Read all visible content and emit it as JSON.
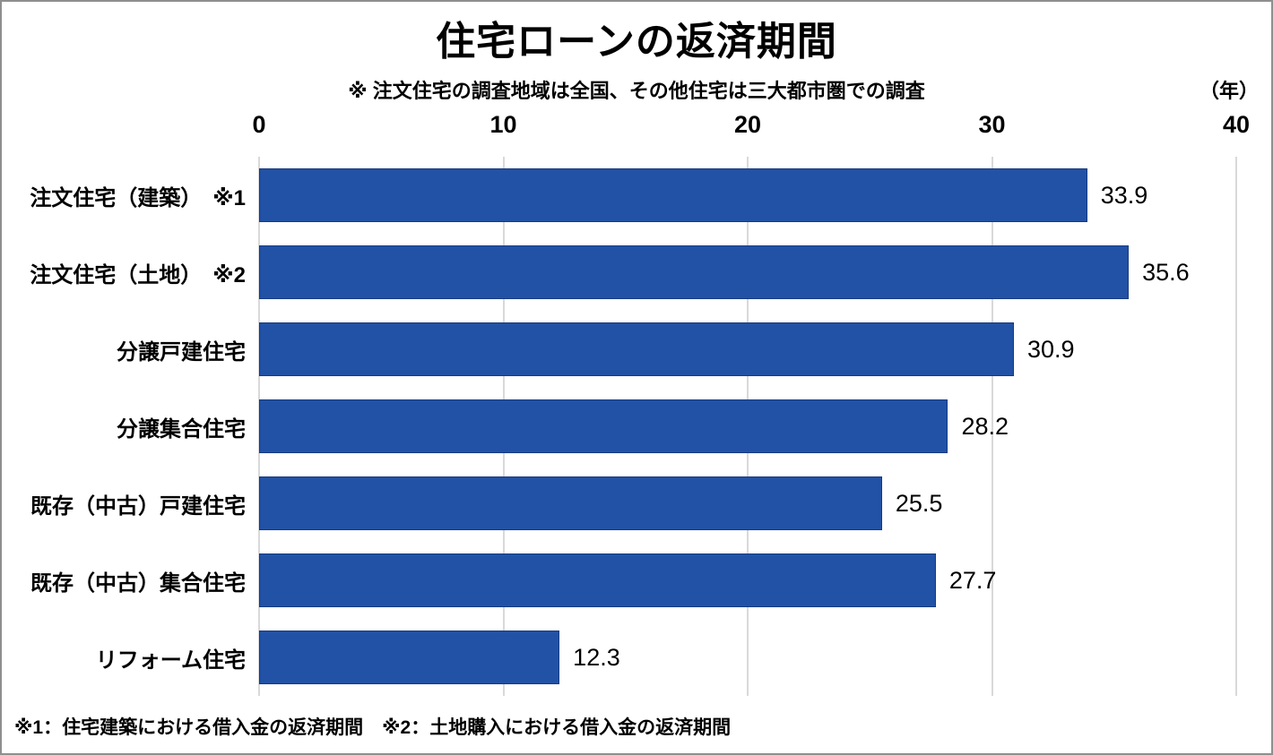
{
  "title": "住宅ローンの返済期間",
  "subtitle": "※ 注文住宅の調査地域は全国、その他住宅は三大都市圏での調査",
  "unit_label": "（年）",
  "footer": "※1：住宅建築における借入金の返済期間　※2：土地購入における借入金の返済期間",
  "colors": {
    "bar_fill": "#2152a6",
    "bar_border": "#173a80",
    "gridline": "#d9d9d9",
    "page_border": "#8f8f8f",
    "text": "#000000"
  },
  "chart_data": {
    "type": "bar",
    "orientation": "horizontal",
    "title": "住宅ローンの返済期間",
    "subtitle": "※ 注文住宅の調査地域は全国、その他住宅は三大都市圏での調査",
    "xlabel": "（年）",
    "categories": [
      "注文住宅（建築）　※1",
      "注文住宅（土地）　※2",
      "分譲戸建住宅",
      "分譲集合住宅",
      "既存（中古）戸建住宅",
      "既存（中古）集合住宅",
      "リフォーム住宅"
    ],
    "values": [
      33.9,
      35.6,
      30.9,
      28.2,
      25.5,
      27.7,
      12.3
    ],
    "xlim": [
      0,
      40
    ],
    "xticks": [
      0,
      10,
      20,
      30,
      40
    ],
    "grid": true,
    "value_labels": true,
    "legend": false,
    "annotations": [
      "※1：住宅建築における借入金の返済期間",
      "※2：土地購入における借入金の返済期間"
    ]
  }
}
